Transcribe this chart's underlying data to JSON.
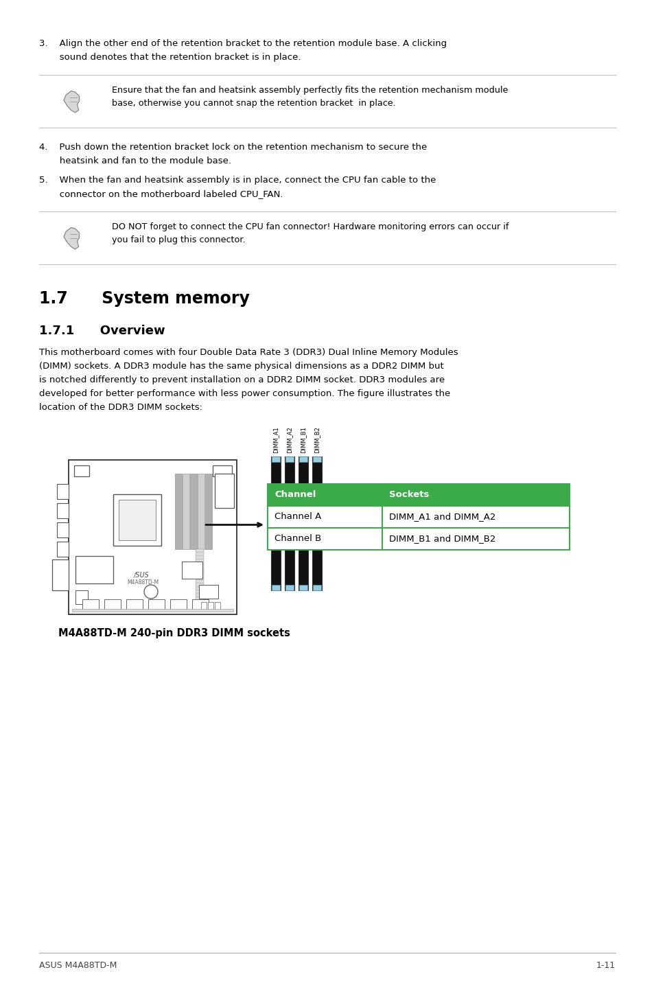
{
  "bg_color": "#ffffff",
  "text_color": "#000000",
  "item3_line1": "3.    Align the other end of the retention bracket to the retention module base. A clicking",
  "item3_line2": "       sound denotes that the retention bracket is in place.",
  "note1_line1": "Ensure that the fan and heatsink assembly perfectly fits the retention mechanism module",
  "note1_line2": "base, otherwise you cannot snap the retention bracket  in place.",
  "item4_line1": "4.    Push down the retention bracket lock on the retention mechanism to secure the",
  "item4_line2": "       heatsink and fan to the module base.",
  "item5_line1": "5.    When the fan and heatsink assembly is in place, connect the CPU fan cable to the",
  "item5_line2": "       connector on the motherboard labeled CPU_FAN.",
  "note2_line1": "DO NOT forget to connect the CPU fan connector! Hardware monitoring errors can occur if",
  "note2_line2": "you fail to plug this connector.",
  "section17": "1.7      System memory",
  "section171": "1.7.1      Overview",
  "overview_lines": [
    "This motherboard comes with four Double Data Rate 3 (DDR3) Dual Inline Memory Modules",
    "(DIMM) sockets. A DDR3 module has the same physical dimensions as a DDR2 DIMM but",
    "is notched differently to prevent installation on a DDR2 DIMM socket. DDR3 modules are",
    "developed for better performance with less power consumption. The figure illustrates the",
    "location of the DDR3 DIMM sockets:"
  ],
  "dimm_labels": [
    "DIMM_A1",
    "DIMM_A2",
    "DIMM_B1",
    "DIMM_B2"
  ],
  "table_header_bg": "#3bab4a",
  "table_header_color": "#ffffff",
  "table_border_color": "#3bab4a",
  "table_row_border": "#aaaaaa",
  "table_header_ch": "Channel",
  "table_header_sk": "Sockets",
  "table_r1_ch": "Channel A",
  "table_r1_sk": "DIMM_A1 and DIMM_A2",
  "table_r2_ch": "Channel B",
  "table_r2_sk": "DIMM_B1 and DIMM_B2",
  "caption": "M4A88TD-M 240-pin DDR3 DIMM sockets",
  "footer_left": "ASUS M4A88TD-M",
  "footer_right": "1-11",
  "sep_color": "#c0c0c0",
  "footer_line_color": "#b0b0b0"
}
